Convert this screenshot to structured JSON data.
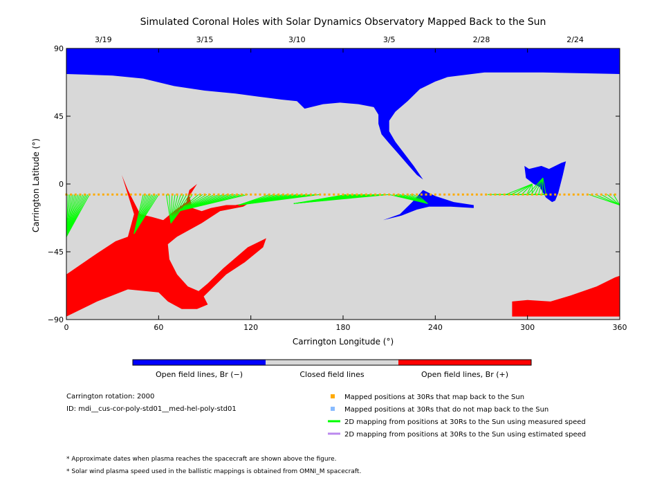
{
  "chart_data": {
    "type": "map",
    "title": "Simulated Coronal Holes with Solar Dynamics Observatory Mapped Back to the Sun",
    "xlabel": "Carrington Longitude (°)",
    "ylabel": "Carrington Latitude (°)",
    "xlim": [
      0,
      360
    ],
    "ylim": [
      -90,
      90
    ],
    "x_ticks": [
      0,
      60,
      120,
      180,
      240,
      300,
      360
    ],
    "y_ticks": [
      90,
      45,
      0,
      -45,
      -90
    ],
    "y_tick_labels": [
      "90",
      "45",
      "0",
      "−45",
      "−90"
    ],
    "top_dates": [
      {
        "label": "3/19",
        "lon": 24
      },
      {
        "label": "3/15",
        "lon": 90
      },
      {
        "label": "3/10",
        "lon": 150
      },
      {
        "label": "3/5",
        "lon": 210
      },
      {
        "label": "2/28",
        "lon": 270
      },
      {
        "label": "2/24",
        "lon": 331
      }
    ],
    "background_color": "#d8d8d8",
    "regions": [
      {
        "name": "Open field lines, Br (−)",
        "color": "#0000ff",
        "polygons": [
          [
            [
              0,
              90
            ],
            [
              360,
              90
            ],
            [
              360,
              73
            ],
            [
              310,
              74
            ],
            [
              272,
              74
            ],
            [
              248,
              71
            ],
            [
              240,
              68
            ],
            [
              230,
              63
            ],
            [
              222,
              55
            ],
            [
              214,
              48
            ],
            [
              210,
              42
            ],
            [
              210,
              35
            ],
            [
              214,
              28
            ],
            [
              220,
              20
            ],
            [
              226,
              12
            ],
            [
              230,
              6
            ],
            [
              232,
              3
            ],
            [
              228,
              6
            ],
            [
              222,
              13
            ],
            [
              216,
              20
            ],
            [
              210,
              27
            ],
            [
              205,
              33
            ],
            [
              203,
              40
            ],
            [
              203,
              46
            ],
            [
              200,
              51
            ],
            [
              190,
              53
            ],
            [
              178,
              54
            ],
            [
              167,
              53
            ],
            [
              155,
              50
            ],
            [
              150,
              55
            ],
            [
              140,
              56
            ],
            [
              125,
              58
            ],
            [
              110,
              60
            ],
            [
              90,
              62
            ],
            [
              70,
              65
            ],
            [
              50,
              70
            ],
            [
              30,
              72
            ],
            [
              0,
              73
            ]
          ],
          [
            [
              206,
              -24
            ],
            [
              217,
              -20
            ],
            [
              225,
              -12
            ],
            [
              232,
              -4
            ],
            [
              240,
              -8
            ],
            [
              252,
              -12
            ],
            [
              265,
              -14
            ],
            [
              265,
              -16
            ],
            [
              250,
              -15
            ],
            [
              236,
              -15
            ],
            [
              228,
              -17
            ],
            [
              218,
              -21
            ]
          ],
          [
            [
              298,
              12
            ],
            [
              301,
              10
            ],
            [
              309,
              12
            ],
            [
              314,
              10
            ],
            [
              322,
              14
            ],
            [
              325,
              15
            ],
            [
              323,
              6
            ],
            [
              320,
              -6
            ],
            [
              318,
              -11
            ],
            [
              316,
              -12
            ],
            [
              312,
              -9
            ],
            [
              308,
              -2
            ],
            [
              304,
              0
            ],
            [
              299,
              4
            ]
          ]
        ]
      },
      {
        "name": "Open field lines, Br (+)",
        "color": "#ff0000",
        "polygons": [
          [
            [
              0,
              -60
            ],
            [
              20,
              -46
            ],
            [
              32,
              -38
            ],
            [
              40,
              -35
            ],
            [
              44,
              -20
            ],
            [
              36,
              6
            ],
            [
              40,
              -4
            ],
            [
              48,
              -20
            ],
            [
              56,
              -22
            ],
            [
              63,
              -24
            ],
            [
              70,
              -18
            ],
            [
              78,
              -12
            ],
            [
              80,
              -4
            ],
            [
              85,
              0
            ],
            [
              80,
              -8
            ],
            [
              82,
              -16
            ],
            [
              88,
              -18
            ],
            [
              94,
              -16
            ],
            [
              104,
              -14
            ],
            [
              110,
              -14
            ],
            [
              120,
              -12
            ],
            [
              115,
              -15
            ],
            [
              100,
              -18
            ],
            [
              88,
              -26
            ],
            [
              72,
              -35
            ],
            [
              66,
              -40
            ],
            [
              67,
              -50
            ],
            [
              72,
              -60
            ],
            [
              79,
              -68
            ],
            [
              88,
              -72
            ],
            [
              92,
              -80
            ],
            [
              85,
              -83
            ],
            [
              75,
              -83
            ],
            [
              66,
              -78
            ],
            [
              60,
              -72
            ],
            [
              40,
              -70
            ],
            [
              20,
              -78
            ],
            [
              0,
              -88
            ]
          ],
          [
            [
              75,
              -78
            ],
            [
              85,
              -72
            ],
            [
              92,
              -66
            ],
            [
              102,
              -56
            ],
            [
              118,
              -42
            ],
            [
              130,
              -36
            ],
            [
              128,
              -42
            ],
            [
              116,
              -52
            ],
            [
              104,
              -60
            ],
            [
              96,
              -68
            ],
            [
              88,
              -76
            ],
            [
              80,
              -82
            ]
          ],
          [
            [
              290,
              -78
            ],
            [
              300,
              -77
            ],
            [
              315,
              -78
            ],
            [
              328,
              -74
            ],
            [
              345,
              -68
            ],
            [
              357,
              -62
            ],
            [
              360,
              -61
            ],
            [
              360,
              -88
            ],
            [
              290,
              -88
            ]
          ]
        ]
      }
    ],
    "mapped_points": {
      "color": "#ffaa00",
      "latitude": -7,
      "lon_start": 0,
      "lon_end": 358,
      "lon_step": 3
    },
    "mapping_lines": [
      {
        "from": 0,
        "to": [
          0,
          -18
        ],
        "n": 1
      },
      {
        "from": [
          0,
          15
        ],
        "to": [
          0,
          -35
        ],
        "n": 15
      },
      {
        "from": [
          50,
          60
        ],
        "to": [
          44,
          -33
        ],
        "n": 10
      },
      {
        "from": [
          65,
          82
        ],
        "to": [
          68,
          -26
        ],
        "n": 10
      },
      {
        "from": [
          86,
          118
        ],
        "to": [
          73,
          -18
        ],
        "n": 13
      },
      {
        "from": [
          132,
          165
        ],
        "to": [
          112,
          -14
        ],
        "n": 12
      },
      {
        "from": [
          182,
          210
        ],
        "to": [
          148,
          -13
        ],
        "n": 10
      },
      {
        "from": [
          210,
          228
        ],
        "to": [
          235,
          -13
        ],
        "n": 9
      },
      {
        "from": [
          274,
          296
        ],
        "to": [
          313,
          -7
        ],
        "n": 7
      },
      {
        "from": [
          286,
          303
        ],
        "to": [
          303,
          0
        ],
        "n": 6
      },
      {
        "from": [
          300,
          312
        ],
        "to": [
          310,
          4
        ],
        "n": 6
      },
      {
        "from": [
          340,
          360
        ],
        "to": [
          360,
          -14
        ],
        "n": 6
      }
    ],
    "color_scale": [
      {
        "label": "Open field lines, Br (−)",
        "color": "#0000ff"
      },
      {
        "label": "Closed field lines",
        "color": "#d8d8d8"
      },
      {
        "label": "Open field lines, Br (+)",
        "color": "#ff0000"
      }
    ],
    "legend": [
      {
        "label": "Mapped positions at 30Rs that map back to the Sun",
        "color": "#ffaa00",
        "marker": "square"
      },
      {
        "label": "Mapped positions at 30Rs that do not map back to the Sun",
        "color": "#88bbff",
        "marker": "square"
      },
      {
        "label": "2D mapping from positions at 30Rs to the Sun using measured speed",
        "color": "#00ff00",
        "marker": "line"
      },
      {
        "label": "2D mapping from positions at 30Rs to the Sun using estimated speed",
        "color": "#bb88ee",
        "marker": "line"
      }
    ]
  },
  "info": {
    "rotation": "Carrington rotation: 2000",
    "id": "ID: mdi__cus-cor-poly-std01__med-hel-poly-std01"
  },
  "notes": [
    "* Approximate dates when plasma reaches the spacecraft are shown above the figure.",
    "* Solar wind plasma speed used in the ballistic mappings is obtained from OMNI_M spacecraft."
  ]
}
